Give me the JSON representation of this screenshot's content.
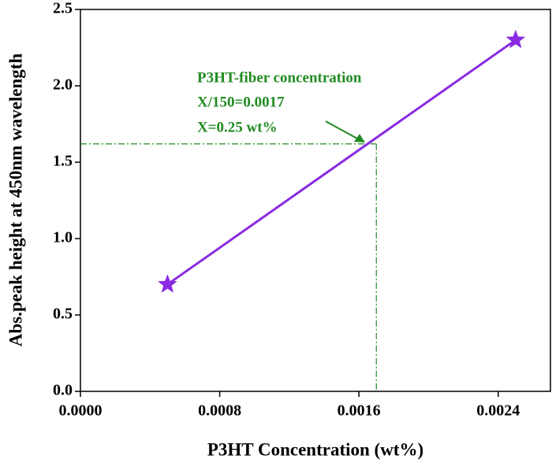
{
  "chart_data": {
    "type": "line",
    "x_label": "P3HT Concentration (wt%)",
    "y_label": "Abs.peak height at 450nm wavelength",
    "x": [
      0.0005,
      0.0025
    ],
    "series": [
      {
        "color": "#8a2be2",
        "marker": "star",
        "values": [
          0.7,
          2.3
        ]
      }
    ],
    "xlim": [
      0,
      0.0027
    ],
    "ylim": [
      0,
      2.5
    ],
    "xticks": [
      {
        "value": 0,
        "label": "0.0000"
      },
      {
        "value": 0.0008,
        "label": "0.0008"
      },
      {
        "value": 0.0016,
        "label": "0.0016"
      },
      {
        "value": 0.0024,
        "label": "0.0024"
      }
    ],
    "yticks": [
      {
        "value": 0,
        "label": "0.0"
      },
      0.5,
      {
        "value": 1,
        "label": "1.0"
      },
      1.5,
      {
        "value": 2,
        "label": "2.0"
      },
      2.5
    ],
    "guide": {
      "x": 0.0017,
      "y": 1.62,
      "color": "#228b22"
    },
    "annotations": [
      "P3HT-fiber concentration",
      "X/150=0.0017",
      "X=0.25 wt%"
    ]
  }
}
